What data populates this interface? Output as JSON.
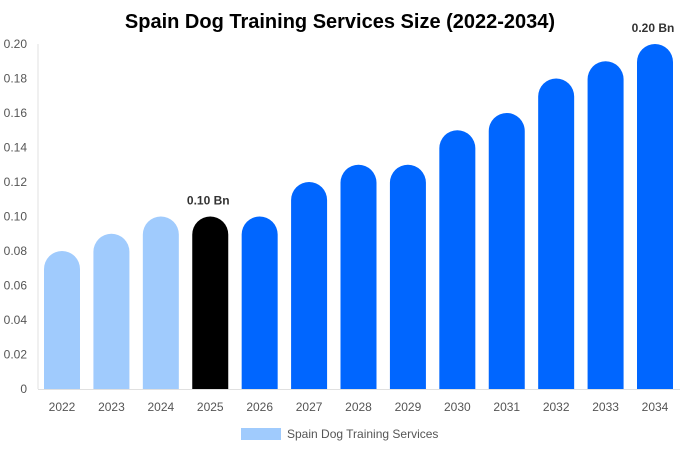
{
  "chart_data": {
    "type": "bar",
    "title": "Spain Dog Training Services Size (2022-2034)",
    "xlabel": "",
    "ylabel": "",
    "categories": [
      "2022",
      "2023",
      "2024",
      "2025",
      "2026",
      "2027",
      "2028",
      "2029",
      "2030",
      "2031",
      "2032",
      "2033",
      "2034"
    ],
    "series": [
      {
        "name": "Spain Dog Training Services",
        "values": [
          0.08,
          0.09,
          0.1,
          0.1,
          0.1,
          0.12,
          0.13,
          0.13,
          0.15,
          0.16,
          0.18,
          0.19,
          0.2
        ]
      }
    ],
    "ylim": [
      0,
      0.2
    ],
    "yticks": [
      "0",
      "0.02",
      "0.04",
      "0.06",
      "0.08",
      "0.10",
      "0.12",
      "0.14",
      "0.16",
      "0.18",
      "0.20"
    ],
    "data_labels": [
      {
        "category": "2025",
        "text": "0.10 Bn"
      },
      {
        "category": "2034",
        "text": "0.20 Bn"
      }
    ],
    "grid": false,
    "legend_position": "bottom",
    "colors": {
      "historical": "#a0cbfd",
      "base_year": "#000000",
      "forecast": "#0066ff"
    },
    "color_by_category": [
      "historical",
      "historical",
      "historical",
      "base_year",
      "forecast",
      "forecast",
      "forecast",
      "forecast",
      "forecast",
      "forecast",
      "forecast",
      "forecast",
      "forecast"
    ]
  }
}
